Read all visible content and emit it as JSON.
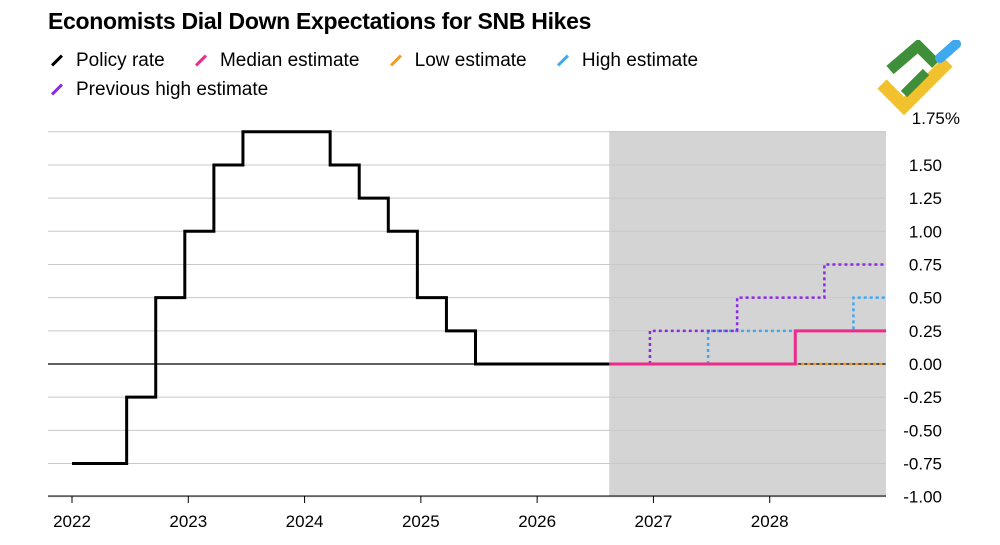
{
  "title": "Economists Dial Down Expectations for SNB Hikes",
  "colors": {
    "policy": "#000000",
    "median": "#ee2a8a",
    "low": "#f39a24",
    "high": "#3fa9f0",
    "prev_high": "#8a2be2",
    "forecast_shade": "#d4d4d4",
    "grid": "#c8c8c8"
  },
  "chart_data": {
    "type": "line",
    "title": "Economists Dial Down Expectations for SNB Hikes",
    "xlabel": "",
    "ylabel": "",
    "y_unit_label": "1.75%",
    "xlim": [
      2021.9,
      2029.0
    ],
    "ylim": [
      -1.05,
      1.75
    ],
    "x_ticks": [
      "2022",
      "2023",
      "2024",
      "2025",
      "2026",
      "2027",
      "2028"
    ],
    "y_ticks": [
      "1.50",
      "1.25",
      "1.00",
      "0.75",
      "0.50",
      "0.25",
      "0.00",
      "-0.25",
      "-0.50",
      "-0.75",
      "-1.00"
    ],
    "forecast_region": [
      2026.62,
      2029.0
    ],
    "legend_position": "top-left",
    "grid": true,
    "series": [
      {
        "name": "Policy rate",
        "style": "solid",
        "step": true,
        "x": [
          2022.0,
          2022.47,
          2022.72,
          2022.97,
          2023.22,
          2023.47,
          2023.72,
          2023.97,
          2024.22,
          2024.47,
          2024.72,
          2024.97,
          2025.22,
          2025.47,
          2026.62
        ],
        "y": [
          -0.75,
          -0.25,
          0.5,
          1.0,
          1.5,
          1.75,
          1.75,
          1.75,
          1.5,
          1.25,
          1.0,
          0.5,
          0.25,
          0.0,
          0.0
        ]
      },
      {
        "name": "Median estimate",
        "style": "solid",
        "step": true,
        "x": [
          2026.62,
          2028.22,
          2029.0
        ],
        "y": [
          0.0,
          0.25,
          0.25
        ]
      },
      {
        "name": "Low estimate",
        "style": "dotted",
        "step": true,
        "x": [
          2028.22,
          2029.0
        ],
        "y": [
          0.0,
          0.0
        ]
      },
      {
        "name": "High estimate",
        "style": "dotted",
        "step": true,
        "x": [
          2027.47,
          2028.72,
          2029.0
        ],
        "y": [
          0.25,
          0.5,
          0.5
        ]
      },
      {
        "name": "Previous high estimate",
        "style": "dotted",
        "step": true,
        "x": [
          2026.97,
          2027.72,
          2028.47,
          2029.0
        ],
        "y": [
          0.25,
          0.5,
          0.75,
          0.75
        ]
      }
    ]
  }
}
